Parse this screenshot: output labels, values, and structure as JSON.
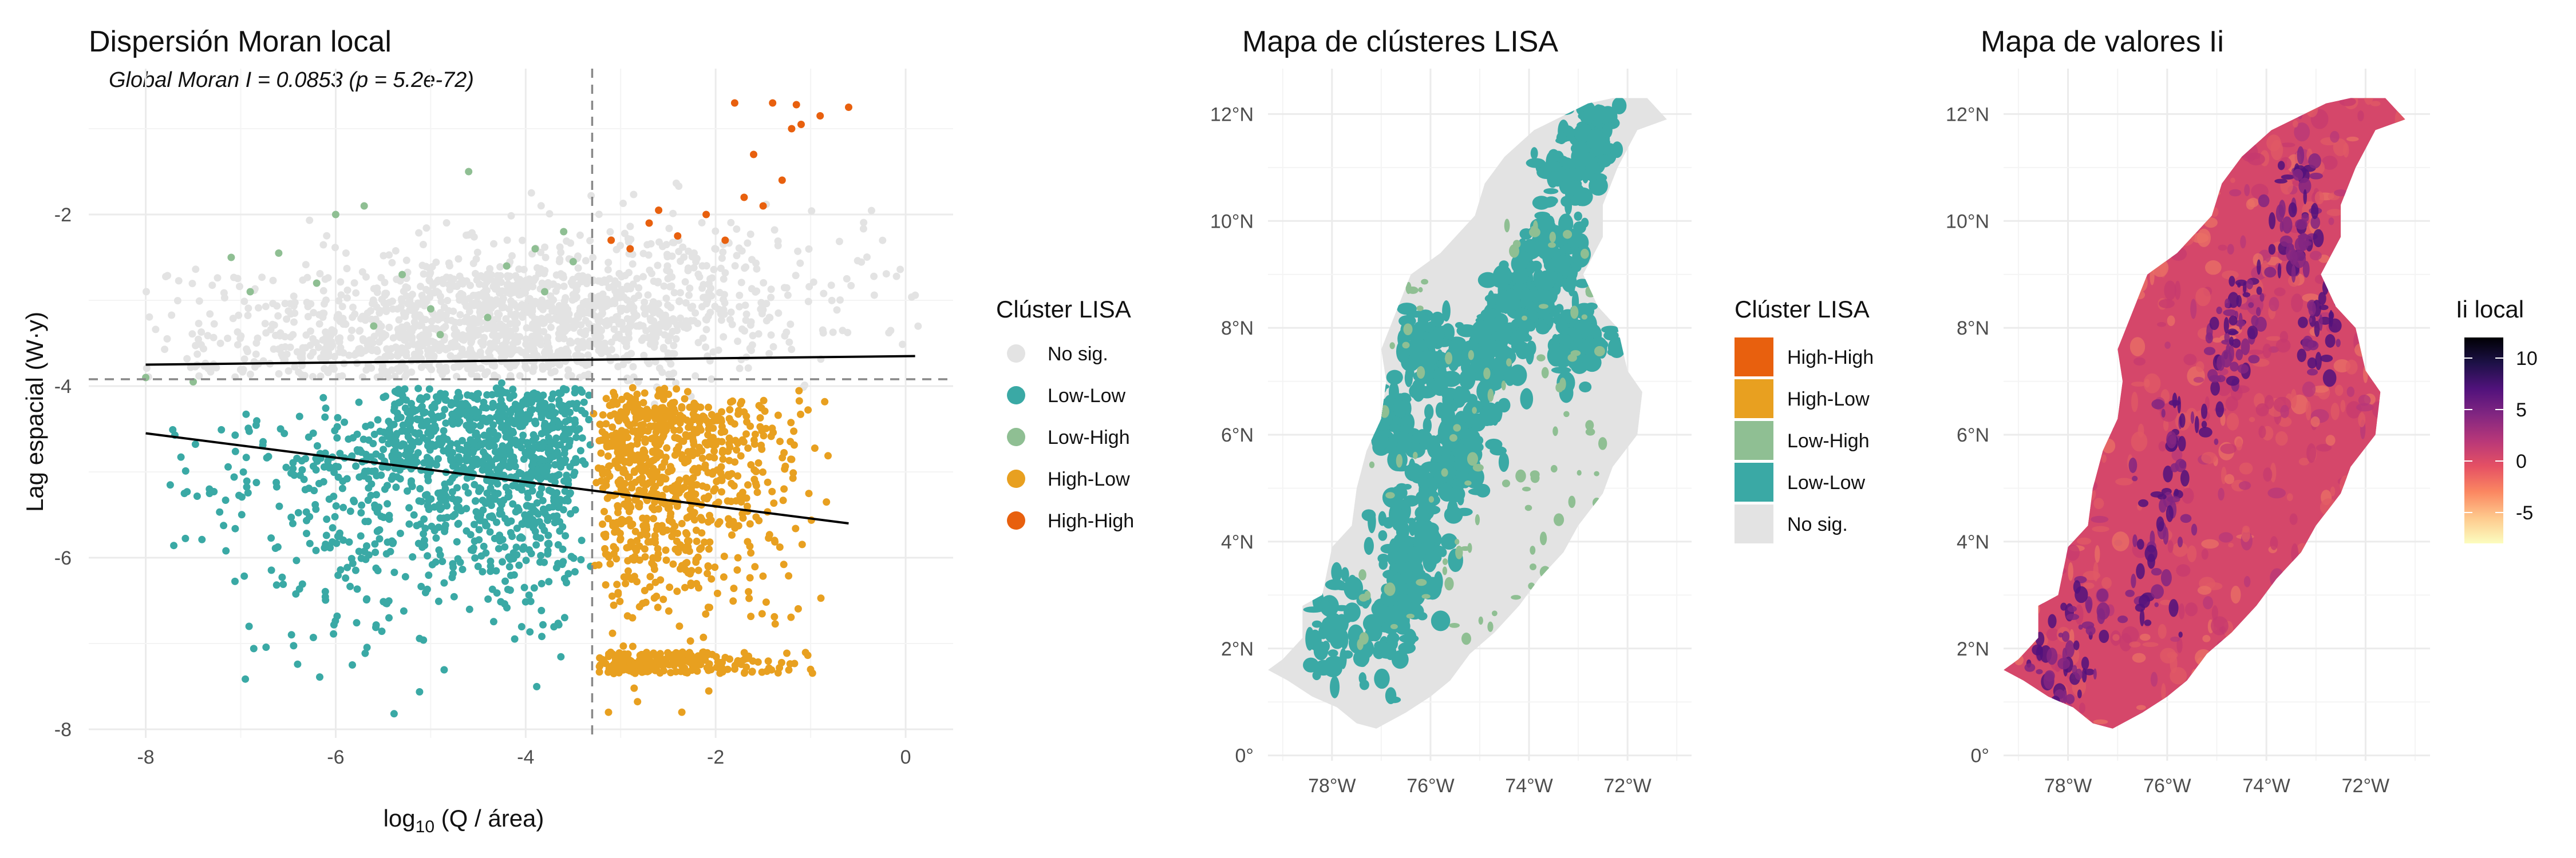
{
  "chart_data": [
    {
      "type": "scatter",
      "title": "Dispersión Moran local",
      "subtitle": "Global Moran I = 0.0853 (p = 5.2e-72)",
      "xlabel_main": "log",
      "xlabel_sub": "10",
      "xlabel_rest": " (Q / área)",
      "ylabel": "Lag espacial (W·y)",
      "xlim": [
        -8.6,
        0.5
      ],
      "ylim": [
        -8.1,
        -0.3
      ],
      "xticks": [
        -8,
        -6,
        -4,
        -2,
        0
      ],
      "yticks": [
        -8,
        -6,
        -4,
        -2
      ],
      "grid": true,
      "mean_x": -3.3,
      "mean_y": -3.92,
      "regression_lines": [
        {
          "x": [
            -8.0,
            0.1
          ],
          "y": [
            -3.75,
            -3.65
          ]
        },
        {
          "x": [
            -8.0,
            -0.6
          ],
          "y": [
            -4.55,
            -5.6
          ]
        }
      ],
      "legend": {
        "title": "Clúster LISA",
        "position": "right",
        "entries": [
          {
            "label": "No sig.",
            "color": "#e3e3e3"
          },
          {
            "label": "Low-Low",
            "color": "#3aa9a5"
          },
          {
            "label": "Low-High",
            "color": "#8fbf93"
          },
          {
            "label": "High-Low",
            "color": "#e8a020"
          },
          {
            "label": "High-High",
            "color": "#e8600e"
          }
        ]
      },
      "series": [
        {
          "name": "No sig.",
          "x_range": [
            -8.0,
            0.2
          ],
          "y_range": [
            -5.2,
            -1.0
          ],
          "approx_count": 1600
        },
        {
          "name": "Low-Low",
          "x_range": [
            -8.0,
            -3.3
          ],
          "y_range": [
            -8.0,
            -3.9
          ],
          "approx_count": 1300
        },
        {
          "name": "High-Low",
          "x_range": [
            -3.3,
            -0.8
          ],
          "y_range": [
            -8.0,
            -3.95
          ],
          "approx_count": 1100
        },
        {
          "name": "Low-High",
          "points": [
            [
              -7.1,
              -2.5
            ],
            [
              -6.9,
              -2.9
            ],
            [
              -6.6,
              -2.45
            ],
            [
              -6.2,
              -2.8
            ],
            [
              -6.0,
              -2.0
            ],
            [
              -5.7,
              -1.9
            ],
            [
              -5.6,
              -3.3
            ],
            [
              -5.3,
              -2.7
            ],
            [
              -5.0,
              -3.1
            ],
            [
              -4.9,
              -3.4
            ],
            [
              -4.6,
              -1.5
            ],
            [
              -4.4,
              -3.2
            ],
            [
              -4.2,
              -2.6
            ],
            [
              -3.9,
              -2.4
            ],
            [
              -3.8,
              -2.9
            ],
            [
              -3.6,
              -2.2
            ],
            [
              -3.5,
              -2.55
            ],
            [
              -8.0,
              -3.9
            ],
            [
              -7.5,
              -3.95
            ]
          ]
        },
        {
          "name": "High-High",
          "points": [
            [
              -3.1,
              -2.3
            ],
            [
              -2.9,
              -2.4
            ],
            [
              -2.7,
              -2.1
            ],
            [
              -2.6,
              -1.95
            ],
            [
              -2.4,
              -2.25
            ],
            [
              -2.1,
              -2.0
            ],
            [
              -1.9,
              -2.3
            ],
            [
              -1.7,
              -1.8
            ],
            [
              -1.5,
              -1.9
            ],
            [
              -1.3,
              -1.6
            ],
            [
              -1.6,
              -1.3
            ],
            [
              -1.2,
              -1.0
            ],
            [
              -1.1,
              -0.95
            ],
            [
              -0.9,
              -0.85
            ],
            [
              -0.6,
              -0.75
            ],
            [
              -1.4,
              -0.7
            ],
            [
              -1.15,
              -0.72
            ],
            [
              -1.8,
              -0.7
            ]
          ]
        }
      ]
    },
    {
      "type": "map",
      "title": "Mapa de clústeres LISA",
      "lon_ticks": [
        "78°W",
        "76°W",
        "74°W",
        "72°W"
      ],
      "lat_ticks": [
        "0°",
        "2°N",
        "4°N",
        "6°N",
        "8°N",
        "10°N",
        "12°N"
      ],
      "legend": {
        "title": "Clúster LISA",
        "position": "right",
        "entries": [
          {
            "label": "High-High",
            "color": "#e8600e"
          },
          {
            "label": "High-Low",
            "color": "#e8a020"
          },
          {
            "label": "Low-High",
            "color": "#8fbf93"
          },
          {
            "label": "Low-Low",
            "color": "#3aa9a5"
          },
          {
            "label": "No sig.",
            "color": "#e3e3e3"
          }
        ]
      }
    },
    {
      "type": "map",
      "title": "Mapa de valores Ii",
      "lon_ticks": [
        "78°W",
        "76°W",
        "74°W",
        "72°W"
      ],
      "lat_ticks": [
        "0°",
        "2°N",
        "4°N",
        "6°N",
        "8°N",
        "10°N",
        "12°N"
      ],
      "colorbar": {
        "title": "Ii local",
        "ticks": [
          "10",
          "5",
          "0",
          "-5"
        ],
        "range": [
          -8,
          12
        ],
        "colors": [
          "#fcfdbf",
          "#fec98d",
          "#fb8761",
          "#e55064",
          "#b73779",
          "#822681",
          "#51127c",
          "#1d1147",
          "#000004"
        ]
      }
    }
  ]
}
